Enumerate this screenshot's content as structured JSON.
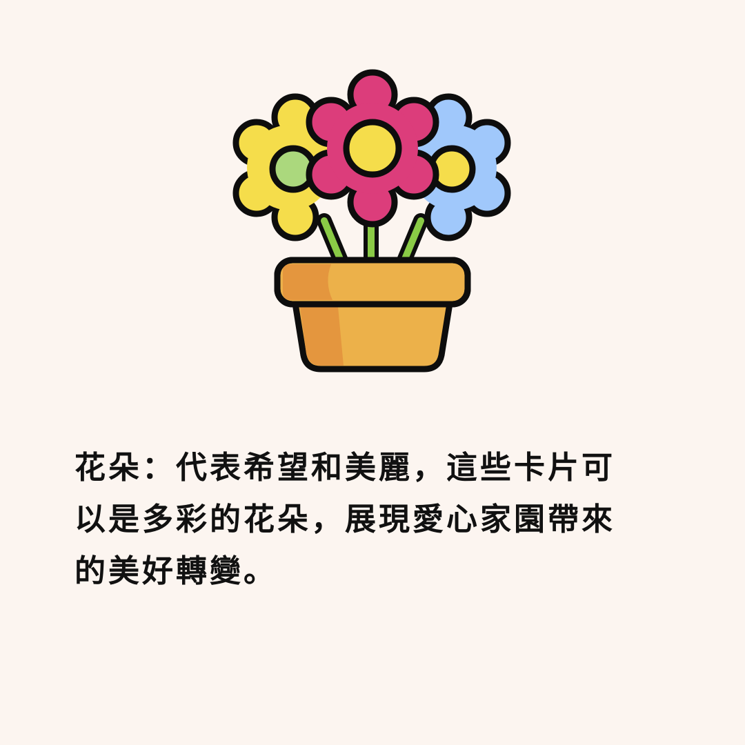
{
  "colors": {
    "background": "#fcf5f0",
    "outline": "#0d0d0d",
    "yellow": "#f5dd4b",
    "pink": "#dc3d7b",
    "blue": "#a0c8fb",
    "green_center": "#abd87d",
    "stem": "#8acb46",
    "pot": "#ecb14a",
    "pot_shade": "#e4963e"
  },
  "icon": "flower-pot-icon",
  "caption": {
    "line1": "花朵：代表希望和美麗，這些卡片可",
    "line2": "以是多彩的花朵，展現愛心家園帶來",
    "line3": "的美好轉變。"
  }
}
